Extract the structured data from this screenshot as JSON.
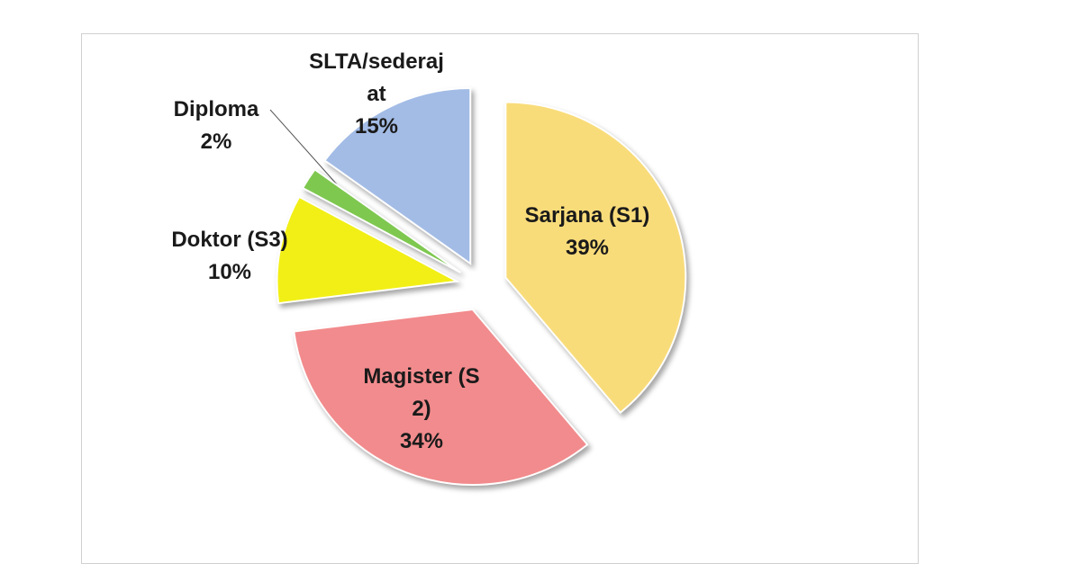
{
  "chart_data": {
    "type": "pie",
    "categories": [
      "Sarjana (S1)",
      "Magister (S2)",
      "Doktor (S3)",
      "Diploma",
      "SLTA/sederajat"
    ],
    "values": [
      39,
      34,
      10,
      2,
      15
    ],
    "value_labels": [
      "39%",
      "34%",
      "10%",
      "2%",
      "15%"
    ],
    "colors": [
      "#f9dc7a",
      "#f28b8d",
      "#f2ef16",
      "#7ec850",
      "#a3bce6"
    ]
  }
}
